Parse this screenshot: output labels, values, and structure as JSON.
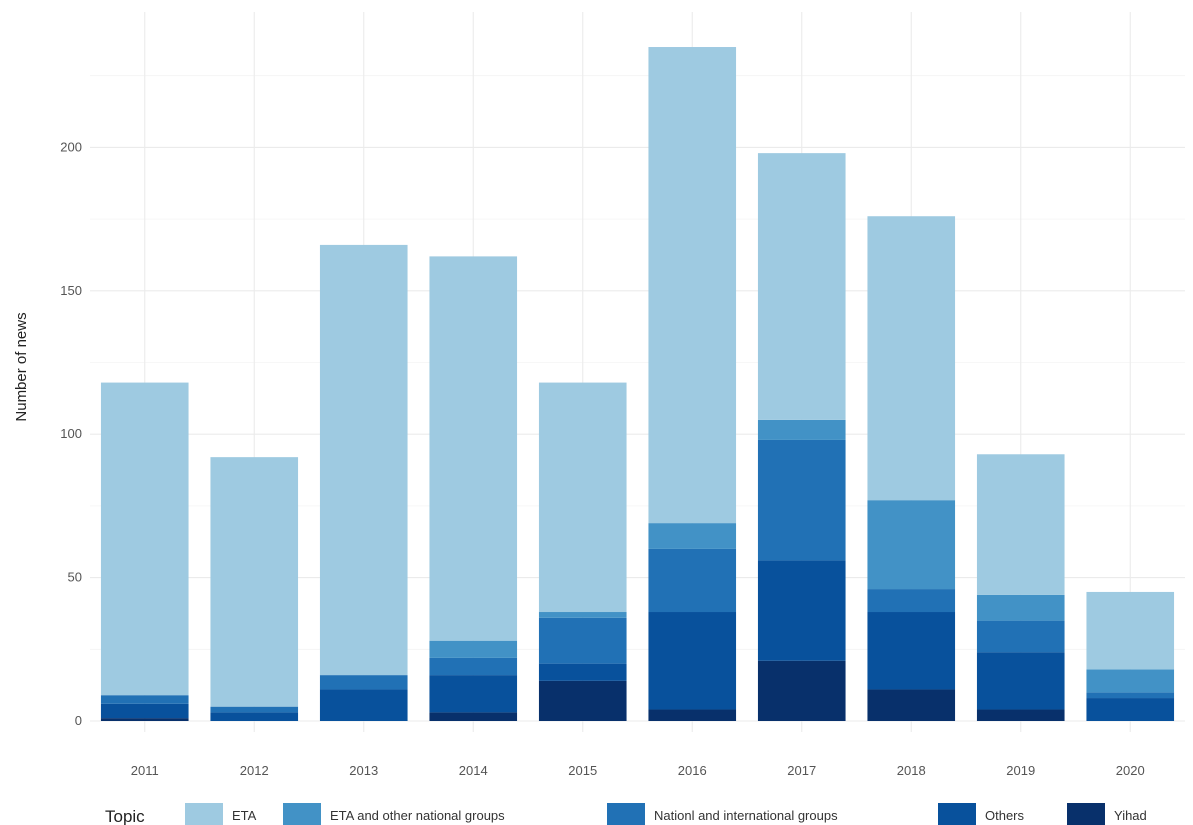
{
  "chart_data": {
    "type": "bar",
    "stacked": true,
    "title": "",
    "xlabel": "",
    "ylabel": "Number of news",
    "categories": [
      "2011",
      "2012",
      "2013",
      "2014",
      "2015",
      "2016",
      "2017",
      "2018",
      "2019",
      "2020"
    ],
    "ylim": [
      0,
      235
    ],
    "yticks": [
      0,
      50,
      100,
      150,
      200
    ],
    "grid": true,
    "legend_position": "bottom",
    "legend_title": "Topic",
    "series": [
      {
        "name": "Yihad",
        "color": "#08306b",
        "values": [
          1,
          0,
          0,
          3,
          14,
          4,
          21,
          11,
          4,
          0
        ]
      },
      {
        "name": "Others",
        "color": "#08519c",
        "values": [
          5,
          3,
          11,
          13,
          6,
          34,
          35,
          27,
          20,
          8
        ]
      },
      {
        "name": "Nationl and international groups",
        "color": "#2171b5",
        "values": [
          3,
          2,
          5,
          6,
          16,
          22,
          42,
          8,
          11,
          2
        ]
      },
      {
        "name": "ETA and other national groups",
        "color": "#4292c6",
        "values": [
          0,
          0,
          0,
          6,
          2,
          9,
          7,
          31,
          9,
          8
        ]
      },
      {
        "name": "ETA",
        "color": "#9ecae1",
        "values": [
          109,
          87,
          150,
          134,
          80,
          166,
          93,
          99,
          49,
          27
        ]
      }
    ],
    "legend_order": [
      "ETA",
      "ETA and other national groups",
      "Nationl and international groups",
      "Others",
      "Yihad"
    ]
  }
}
